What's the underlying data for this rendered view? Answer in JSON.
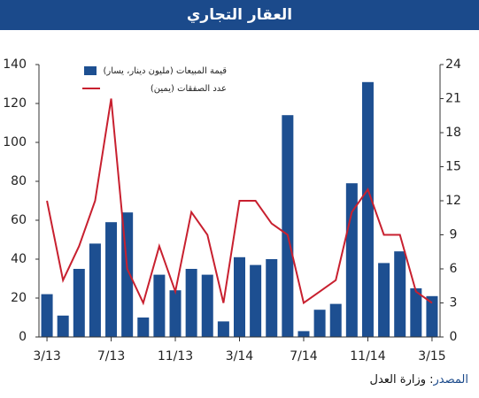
{
  "chart_data": {
    "type": "bar-line",
    "title": "العقار التجاري",
    "categories": [
      "3/13",
      null,
      null,
      null,
      "7/13",
      null,
      null,
      null,
      "11/13",
      null,
      null,
      null,
      "3/14",
      null,
      null,
      null,
      "7/14",
      null,
      null,
      null,
      "11/14",
      null,
      null,
      null,
      "3/15"
    ],
    "series": [
      {
        "name": "قيمة المبيعات (مليون دينار، يسار)",
        "type": "bar",
        "color": "#1d4f91",
        "values": [
          22,
          11,
          35,
          48,
          59,
          64,
          10,
          32,
          24,
          35,
          32,
          8,
          41,
          37,
          40,
          114,
          3,
          14,
          17,
          79,
          131,
          38,
          44,
          25,
          21
        ]
      },
      {
        "name": "عدد الصفقات (يمين)",
        "type": "line",
        "axis": "y2",
        "color": "#c8202f",
        "values": [
          12,
          5,
          8,
          12,
          21,
          6,
          3,
          8,
          4,
          11,
          9,
          3,
          12,
          12,
          10,
          9,
          3,
          4,
          5,
          11,
          13,
          9,
          9,
          4,
          3
        ]
      }
    ],
    "ylim": [
      0,
      140
    ],
    "yticks": [
      0,
      20,
      40,
      60,
      80,
      100,
      120,
      140
    ],
    "y2lim": [
      0,
      24
    ],
    "y2ticks": [
      0,
      3,
      6,
      9,
      12,
      15,
      18,
      21,
      24
    ],
    "source_label": "المصدر",
    "source_text": ": وزارة العدل"
  }
}
